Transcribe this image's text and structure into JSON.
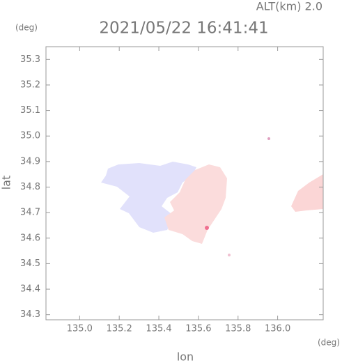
{
  "chart_data": {
    "type": "map",
    "title": "2021/05/22 16:41:41",
    "subtitle": "ALT(km) 2.0",
    "x_label": "lon",
    "y_label": "lat",
    "x_unit": "(deg)",
    "y_unit": "(deg)",
    "xlim": [
      134.83,
      136.23
    ],
    "ylim": [
      34.28,
      35.35
    ],
    "xticks": [
      {
        "value": 135,
        "label": "135.0"
      },
      135.2,
      135.4,
      135.6,
      135.8,
      {
        "value": 136,
        "label": "136.0"
      }
    ],
    "yticks": [
      34.3,
      34.4,
      34.5,
      34.6,
      34.7,
      34.8,
      34.9,
      {
        "value": 35,
        "label": "35.0"
      },
      35.1,
      35.2,
      35.3
    ],
    "grid": false
  }
}
